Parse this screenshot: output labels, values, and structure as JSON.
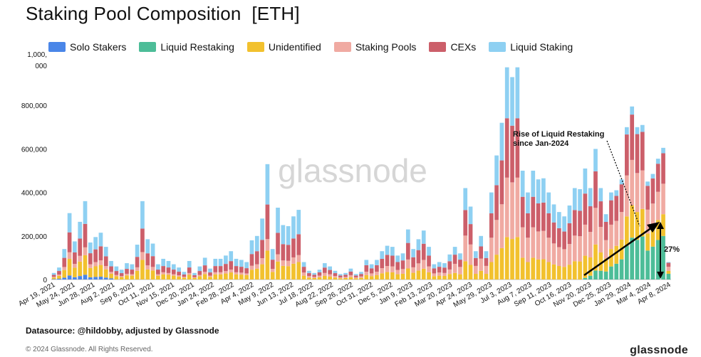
{
  "title": "Staking Pool Composition  [ETH]",
  "datasource": "Datasource: @hildobby, adjusted by Glassnode",
  "copyright": "© 2024 Glassnode. All Rights Reserved.",
  "brand": "glassnode",
  "watermark": "glassnode",
  "colors": {
    "Solo Stakers": "#4a86e8",
    "Liquid Restaking": "#4dbd98",
    "Unidentified": "#f2c12e",
    "Staking Pools": "#f0aaa2",
    "CEXs": "#cc5f6a",
    "Liquid Staking": "#8ed0f2"
  },
  "chart_data": {
    "type": "bar",
    "stacked": true,
    "ylim": [
      0,
      1000000
    ],
    "yticks": [
      {
        "v": 0,
        "label": "0"
      },
      {
        "v": 200000,
        "label": "200,000"
      },
      {
        "v": 400000,
        "label": "400,000"
      },
      {
        "v": 600000,
        "label": "600,000"
      },
      {
        "v": 800000,
        "label": "800,000"
      },
      {
        "v": 1000000,
        "label": "1,000,000"
      }
    ],
    "xticks": [
      "Apr 19, 2021",
      "May 24, 2021",
      "Jun 28, 2021",
      "Aug 2, 2021",
      "Sep 6, 2021",
      "Oct 11, 2021",
      "Nov 15, 2021",
      "Dec 20, 2021",
      "Jan 24, 2022",
      "Feb 28, 2022",
      "Apr 4, 2022",
      "May 9, 2022",
      "Jun 13, 2022",
      "Jul 18, 2022",
      "Aug 22, 2022",
      "Sep 26, 2022",
      "Oct 31, 2022",
      "Dec 5, 2022",
      "Jan 9, 2023",
      "Feb 13, 2023",
      "Mar 20, 2023",
      "Apr 24, 2023",
      "May 29, 2023",
      "Jul 3, 2023",
      "Aug 7, 2023",
      "Sep 11, 2023",
      "Oct 16, 2023",
      "Nov 20, 2023",
      "Dec 25, 2023",
      "Jan 29, 2024",
      "Mar 4, 2024",
      "Apr 8, 2024"
    ],
    "series_names": [
      "Solo Stakers",
      "Liquid Restaking",
      "Unidentified",
      "Staking Pools",
      "CEXs",
      "Liquid Staking"
    ],
    "totals": [
      30000,
      55000,
      140000,
      305000,
      175000,
      265000,
      360000,
      170000,
      195000,
      215000,
      150000,
      85000,
      60000,
      45000,
      75000,
      70000,
      160000,
      360000,
      185000,
      165000,
      70000,
      95000,
      85000,
      70000,
      55000,
      35000,
      85000,
      30000,
      60000,
      100000,
      50000,
      95000,
      95000,
      110000,
      130000,
      95000,
      90000,
      80000,
      180000,
      200000,
      280000,
      530000,
      140000,
      330000,
      250000,
      245000,
      290000,
      320000,
      80000,
      40000,
      30000,
      45000,
      75000,
      60000,
      40000,
      25000,
      30000,
      50000,
      25000,
      35000,
      90000,
      70000,
      90000,
      130000,
      155000,
      150000,
      110000,
      120000,
      230000,
      140000,
      185000,
      225000,
      150000,
      70000,
      80000,
      75000,
      115000,
      150000,
      120000,
      420000,
      335000,
      130000,
      200000,
      130000,
      400000,
      570000,
      720000,
      975000,
      930000,
      975000,
      500000,
      400000,
      500000,
      460000,
      465000,
      400000,
      345000,
      310000,
      290000,
      340000,
      420000,
      415000,
      510000,
      420000,
      600000,
      420000,
      300000,
      400000,
      410000,
      460000,
      700000,
      795000,
      700000,
      710000,
      450000,
      485000,
      555000,
      605000,
      80000
    ],
    "restaking_share_label": "27%",
    "annotation": "Rise of  Liquid Restaking\nsince Jan-2024"
  }
}
